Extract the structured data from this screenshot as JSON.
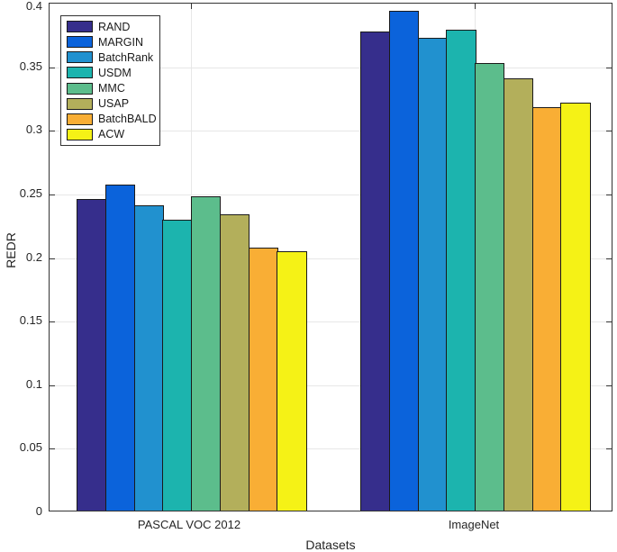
{
  "figure": {
    "background": "#ffffff"
  },
  "chart_data": {
    "type": "bar",
    "title": "",
    "xlabel": "Datasets",
    "ylabel": "REDR",
    "categories": [
      "PASCAL VOC 2012",
      "ImageNet"
    ],
    "series": [
      {
        "name": "RAND",
        "color": "#362e8c",
        "values": [
          0.245,
          0.377
        ]
      },
      {
        "name": "MARGIN",
        "color": "#0b63db",
        "values": [
          0.256,
          0.393
        ]
      },
      {
        "name": "BatchRank",
        "color": "#2191cf",
        "values": [
          0.24,
          0.372
        ]
      },
      {
        "name": "USDM",
        "color": "#1cb4ae",
        "values": [
          0.229,
          0.378
        ]
      },
      {
        "name": "MMC",
        "color": "#5cbd8c",
        "values": [
          0.247,
          0.352
        ]
      },
      {
        "name": "USAP",
        "color": "#b3af5b",
        "values": [
          0.233,
          0.34
        ]
      },
      {
        "name": "BatchBALD",
        "color": "#f9ae35",
        "values": [
          0.207,
          0.317
        ]
      },
      {
        "name": "ACW",
        "color": "#f5f216",
        "values": [
          0.204,
          0.321
        ]
      }
    ],
    "ylim": [
      0,
      0.4
    ],
    "y_ticks": [
      0,
      0.05,
      0.1,
      0.15,
      0.2,
      0.25,
      0.3,
      0.35,
      0.4
    ],
    "y_tick_labels": [
      "0",
      "0.05",
      "0.1",
      "0.15",
      "0.2",
      "0.25",
      "0.3",
      "0.35",
      "0.4"
    ],
    "grid": true,
    "legend_position": "top-left",
    "styles": {
      "bar_edge_color": "#1a1a1a",
      "axis_color": "#333333",
      "grid_color": "#e7e7e7",
      "text_color": "#262626"
    }
  }
}
